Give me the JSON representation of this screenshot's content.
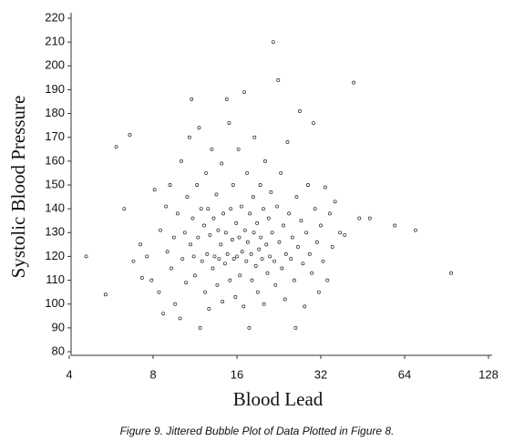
{
  "chart_data": {
    "type": "scatter",
    "caption": "Figure 9.  Jittered Bubble Plot of Data Plotted in Figure 8.",
    "xlabel": "Blood Lead",
    "ylabel": "Systolic Blood Pressure",
    "xscale": "log",
    "xlim": [
      4,
      128
    ],
    "ylim": [
      80,
      220
    ],
    "xticks": [
      4,
      8,
      16,
      32,
      64,
      128
    ],
    "yticks": [
      80,
      90,
      100,
      110,
      120,
      130,
      140,
      150,
      160,
      170,
      180,
      190,
      200,
      210,
      220
    ],
    "color": "#222222",
    "x": [
      4.6,
      5.4,
      5.9,
      6.6,
      6.3,
      6.8,
      7.2,
      7.3,
      7.6,
      7.9,
      8.1,
      8.4,
      8.5,
      8.7,
      8.9,
      9.0,
      9.2,
      9.3,
      9.5,
      9.6,
      9.8,
      10.0,
      10.1,
      10.2,
      10.4,
      10.5,
      10.6,
      10.8,
      10.9,
      11.0,
      11.1,
      11.2,
      11.3,
      11.5,
      11.6,
      11.7,
      11.8,
      11.9,
      12.0,
      12.2,
      12.3,
      12.4,
      12.5,
      12.6,
      12.7,
      12.8,
      13.0,
      13.1,
      13.2,
      13.3,
      13.5,
      13.6,
      13.7,
      13.8,
      14.0,
      14.1,
      14.2,
      14.3,
      14.5,
      14.6,
      14.7,
      14.8,
      15.0,
      15.1,
      15.2,
      15.4,
      15.5,
      15.6,
      15.8,
      15.9,
      16.0,
      16.2,
      16.3,
      16.4,
      16.6,
      16.7,
      16.9,
      17.0,
      17.1,
      17.3,
      17.4,
      17.5,
      17.7,
      17.8,
      18.0,
      18.1,
      18.3,
      18.4,
      18.5,
      18.7,
      18.9,
      19.0,
      19.2,
      19.4,
      19.5,
      19.7,
      19.9,
      20.0,
      20.2,
      20.4,
      20.6,
      20.8,
      21.0,
      21.2,
      21.4,
      21.6,
      21.8,
      22.0,
      22.3,
      22.5,
      22.7,
      23.0,
      23.2,
      23.5,
      23.8,
      24.0,
      24.3,
      24.6,
      25.0,
      25.3,
      25.7,
      26.0,
      26.2,
      26.5,
      26.9,
      27.2,
      27.6,
      28.0,
      28.4,
      28.8,
      29.2,
      29.7,
      30.1,
      30.5,
      31.0,
      31.5,
      32.0,
      32.6,
      33.2,
      33.8,
      34.5,
      35.2,
      36.0,
      37.5,
      39.0,
      42.0,
      44.0,
      48.0,
      59.0,
      70.0,
      94.0
    ],
    "y": [
      120,
      104,
      166,
      171,
      140,
      118,
      125,
      111,
      120,
      110,
      148,
      105,
      131,
      96,
      141,
      122,
      150,
      115,
      128,
      100,
      138,
      94,
      160,
      119,
      130,
      109,
      145,
      170,
      125,
      186,
      136,
      120,
      112,
      150,
      128,
      174,
      90,
      140,
      118,
      133,
      105,
      155,
      121,
      140,
      98,
      129,
      165,
      115,
      136,
      120,
      146,
      108,
      131,
      119,
      125,
      159,
      101,
      138,
      117,
      130,
      186,
      121,
      176,
      110,
      140,
      127,
      150,
      119,
      103,
      134,
      120,
      165,
      128,
      112,
      141,
      122,
      99,
      189,
      131,
      118,
      155,
      126,
      90,
      138,
      121,
      110,
      145,
      130,
      170,
      116,
      134,
      105,
      123,
      150,
      128,
      119,
      140,
      100,
      160,
      125,
      113,
      136,
      120,
      147,
      130,
      210,
      118,
      108,
      141,
      194,
      126,
      155,
      115,
      133,
      102,
      121,
      168,
      138,
      119,
      128,
      110,
      90,
      145,
      124,
      181,
      135,
      117,
      99,
      130,
      150,
      121,
      113,
      176,
      140,
      126,
      105,
      133,
      118,
      149,
      110,
      138,
      124,
      143,
      130,
      129,
      193,
      136,
      136,
      133,
      131,
      113
    ]
  }
}
